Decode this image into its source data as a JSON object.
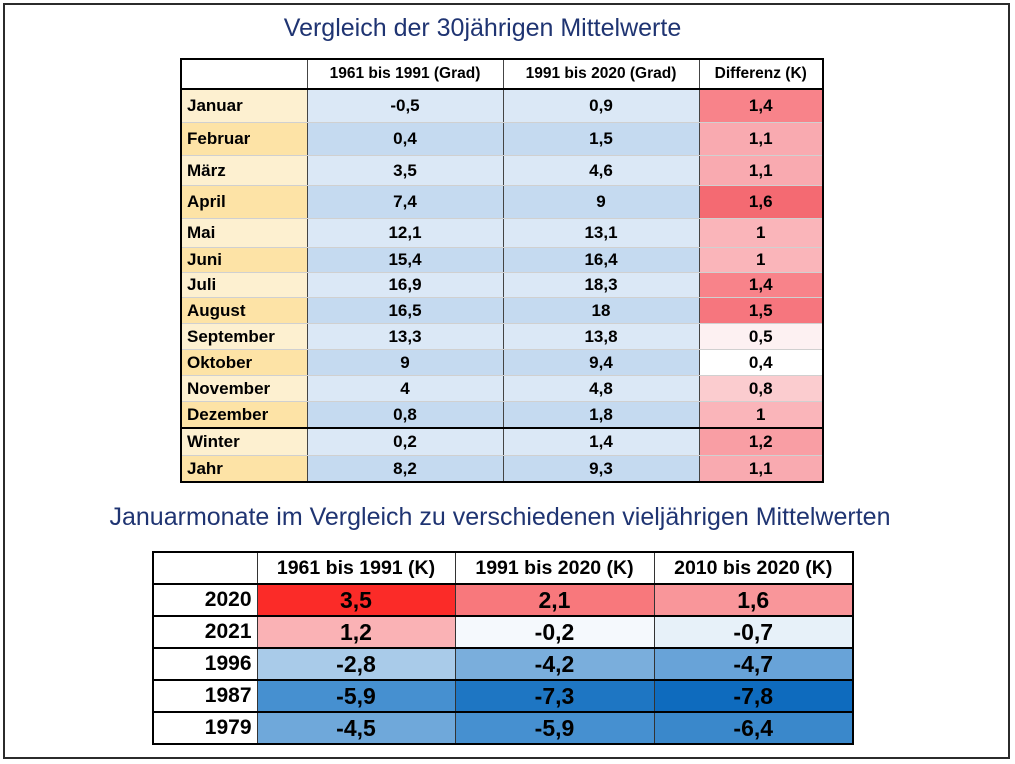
{
  "title": "Vergleich der 30jährigen Mittelwerte",
  "table1": {
    "headers": [
      "",
      "1961 bis 1991 (Grad)",
      "1991 bis 2020 (Grad)",
      "Differenz (K)"
    ],
    "rows": [
      {
        "label": "Januar",
        "a": "-0,5",
        "b": "0,9",
        "d": "1,4",
        "label_color": "#fdf0d0",
        "ab_color": "#dbe8f6",
        "d_color": "#f8838a"
      },
      {
        "label": "Februar",
        "a": "0,4",
        "b": "1,5",
        "d": "1,1",
        "label_color": "#fde3a6",
        "ab_color": "#c5daf0",
        "d_color": "#f9aab0"
      },
      {
        "label": "März",
        "a": "3,5",
        "b": "4,6",
        "d": "1,1",
        "label_color": "#fdf0d0",
        "ab_color": "#dbe8f6",
        "d_color": "#f9aab0"
      },
      {
        "label": "April",
        "a": "7,4",
        "b": "9",
        "d": "1,6",
        "label_color": "#fde3a6",
        "ab_color": "#c5daf0",
        "d_color": "#f46a72"
      },
      {
        "label": "Mai",
        "a": "12,1",
        "b": "13,1",
        "d": "1",
        "label_color": "#fdf0d0",
        "ab_color": "#dbe8f6",
        "d_color": "#fab5ba"
      },
      {
        "label": "Juni",
        "a": "15,4",
        "b": "16,4",
        "d": "1",
        "label_color": "#fde3a6",
        "ab_color": "#c5daf0",
        "d_color": "#fab5ba"
      },
      {
        "label": "Juli",
        "a": "16,9",
        "b": "18,3",
        "d": "1,4",
        "label_color": "#fdf0d0",
        "ab_color": "#dbe8f6",
        "d_color": "#f8838a"
      },
      {
        "label": "August",
        "a": "16,5",
        "b": "18",
        "d": "1,5",
        "label_color": "#fde3a6",
        "ab_color": "#c5daf0",
        "d_color": "#f6767e"
      },
      {
        "label": "September",
        "a": "13,3",
        "b": "13,8",
        "d": "0,5",
        "label_color": "#fdf0d0",
        "ab_color": "#dbe8f6",
        "d_color": "#fdf1f2"
      },
      {
        "label": "Oktober",
        "a": "9",
        "b": "9,4",
        "d": "0,4",
        "label_color": "#fde3a6",
        "ab_color": "#c5daf0",
        "d_color": "#ffffff"
      },
      {
        "label": "November",
        "a": "4",
        "b": "4,8",
        "d": "0,8",
        "label_color": "#fdf0d0",
        "ab_color": "#dbe8f6",
        "d_color": "#fbcccf"
      },
      {
        "label": "Dezember",
        "a": "0,8",
        "b": "1,8",
        "d": "1",
        "label_color": "#fde3a6",
        "ab_color": "#c5daf0",
        "d_color": "#fab5ba"
      },
      {
        "label": "Winter",
        "a": "0,2",
        "b": "1,4",
        "d": "1,2",
        "label_color": "#fdf0d0",
        "ab_color": "#dbe8f6",
        "d_color": "#f99ea4",
        "thick": true
      },
      {
        "label": "Jahr",
        "a": "8,2",
        "b": "9,3",
        "d": "1,1",
        "label_color": "#fde3a6",
        "ab_color": "#c5daf0",
        "d_color": "#f9aab0"
      }
    ]
  },
  "title2": "Januarmonate im Vergleich zu verschiedenen vieljährigen Mittelwerten",
  "table2": {
    "headers": [
      "",
      "1961 bis 1991 (K)",
      "1991 bis 2020 (K)",
      "2010 bis 2020 (K)"
    ],
    "rows": [
      {
        "year": "2020",
        "values": [
          "3,5",
          "2,1",
          "1,6"
        ],
        "colors": [
          "#fb2b28",
          "#f8787c",
          "#f9969a"
        ]
      },
      {
        "year": "2021",
        "values": [
          "1,2",
          "-0,2",
          "-0,7"
        ],
        "colors": [
          "#fab2b5",
          "#f5f9fd",
          "#e7f1f9"
        ]
      },
      {
        "year": "1996",
        "values": [
          "-2,8",
          "-4,2",
          "-4,7"
        ],
        "colors": [
          "#a9cbe9",
          "#7aaedc",
          "#68a3d8"
        ]
      },
      {
        "year": "1987",
        "values": [
          "-5,9",
          "-7,3",
          "-7,8"
        ],
        "colors": [
          "#4690d0",
          "#1e76c3",
          "#0e6bbe"
        ]
      },
      {
        "year": "1979",
        "values": [
          "-4,5",
          "-5,9",
          "-6,4"
        ],
        "colors": [
          "#6fa8da",
          "#4690d0",
          "#3a88cb"
        ]
      }
    ]
  }
}
